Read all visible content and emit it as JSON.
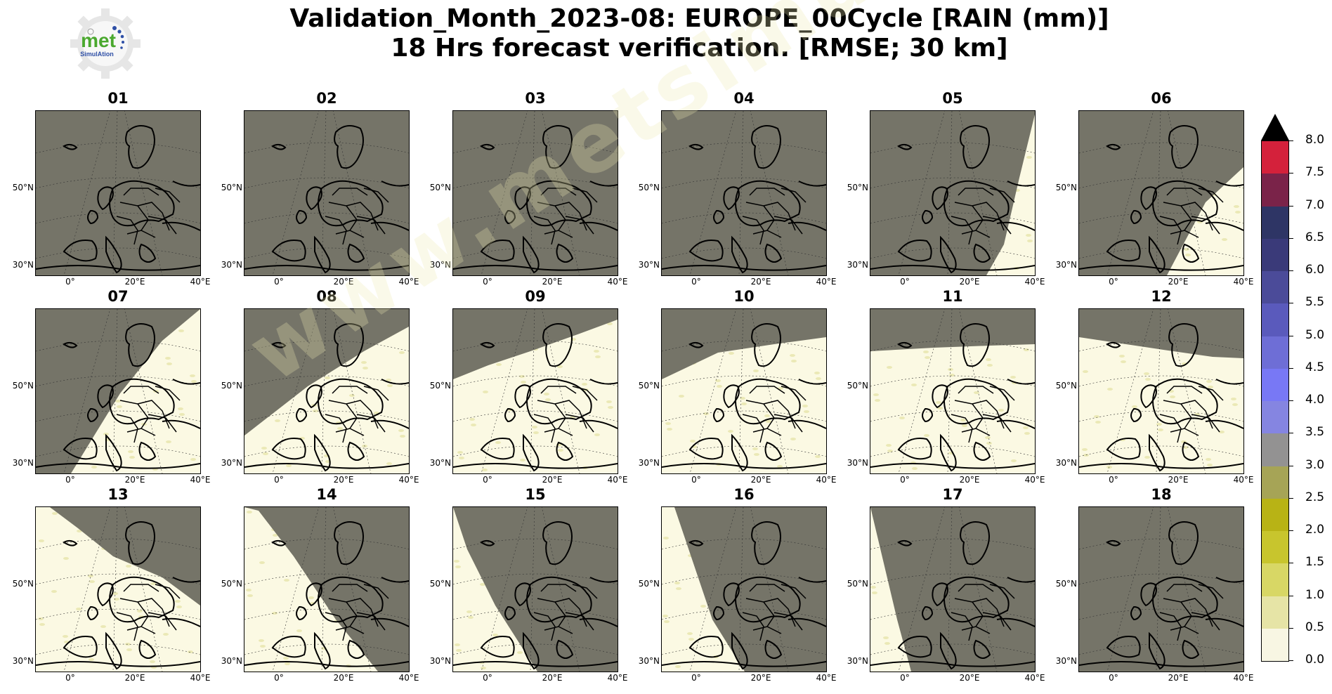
{
  "header": {
    "title_line1": "Validation_Month_2023-08: EUROPE_00Cycle [RAIN (mm)]",
    "title_line2": "18 Hrs forecast verification.  [RMSE; 30 km]"
  },
  "logo": {
    "text_main": "met",
    "text_sub": "SimulAtion",
    "icon": "gear-logo-icon"
  },
  "watermark": "www.metsimulation.com",
  "axes": {
    "y_ticks": [
      "50°N",
      "30°N"
    ],
    "x_ticks": [
      "0°",
      "20°E",
      "40°E"
    ]
  },
  "panels": [
    {
      "label": "01",
      "shadow": "full"
    },
    {
      "label": "02",
      "shadow": "full"
    },
    {
      "label": "03",
      "shadow": "full"
    },
    {
      "label": "04",
      "shadow": "full"
    },
    {
      "label": "05",
      "shadow": "terminator"
    },
    {
      "label": "06",
      "shadow": "terminator"
    },
    {
      "label": "07",
      "shadow": "terminator"
    },
    {
      "label": "08",
      "shadow": "terminator"
    },
    {
      "label": "09",
      "shadow": "terminator"
    },
    {
      "label": "10",
      "shadow": "terminator"
    },
    {
      "label": "11",
      "shadow": "terminator"
    },
    {
      "label": "12",
      "shadow": "terminator"
    },
    {
      "label": "13",
      "shadow": "terminator"
    },
    {
      "label": "14",
      "shadow": "terminator"
    },
    {
      "label": "15",
      "shadow": "terminator"
    },
    {
      "label": "16",
      "shadow": "terminator"
    },
    {
      "label": "17",
      "shadow": "terminator"
    },
    {
      "label": "18",
      "shadow": "full"
    }
  ],
  "colorbar": {
    "labels": [
      "8.0",
      "7.5",
      "7.0",
      "6.5",
      "6.0",
      "5.5",
      "5.0",
      "4.5",
      "4.0",
      "3.5",
      "3.0",
      "2.5",
      "2.0",
      "1.5",
      "1.0",
      "0.5",
      "0.0"
    ],
    "colors": [
      "#f8f6e3",
      "#e6e4a6",
      "#d8d765",
      "#c8c52d",
      "#b8b315",
      "#a6a456",
      "#939292",
      "#8585e1",
      "#7878f5",
      "#6e6ed6",
      "#5a5abc",
      "#4b4b99",
      "#3a3a79",
      "#2e3565",
      "#7a2349",
      "#d4213b",
      "#8a0f18"
    ],
    "extend_color": "#000000"
  },
  "colors": {
    "night_shade": "#757468",
    "day_background": "#fbf9e3",
    "coast": "#000000"
  }
}
